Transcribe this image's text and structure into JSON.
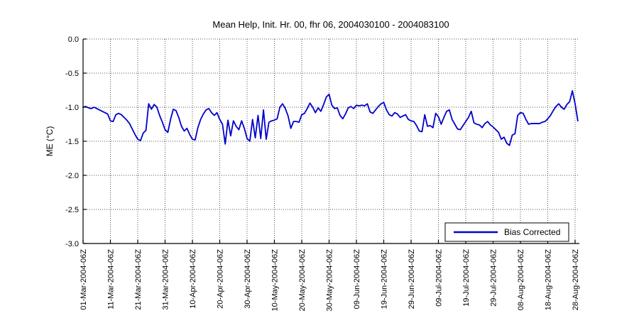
{
  "title": "Mean Help, Init. Hr. 00, fhr 06, 2004030100 - 2004083100",
  "colors": {
    "line": "#0000CC",
    "grid": "#555555",
    "axis": "#000000",
    "background": "#FFFFFF",
    "text": "#000000"
  },
  "chart_data": {
    "type": "line",
    "title": "Mean Help, Init. Hr. 00, fhr 06, 2004030100 - 2004083100",
    "xlabel": "",
    "ylabel": "ME (°C)",
    "ylim": [
      -3.0,
      0.0
    ],
    "ytick_labels": [
      "0.0",
      "-0.5",
      "-1.0",
      "-1.5",
      "-2.0",
      "-2.5",
      "-3.0"
    ],
    "ytick_values": [
      0.0,
      -0.5,
      -1.0,
      -1.5,
      -2.0,
      -2.5,
      -3.0
    ],
    "xtick_labels": [
      "01-Mar-2004-06Z",
      "11-Mar-2004-06Z",
      "21-Mar-2004-06Z",
      "31-Mar-2004-06Z",
      "10-Apr-2004-06Z",
      "20-Apr-2004-06Z",
      "30-Apr-2004-06Z",
      "10-May-2004-06Z",
      "20-May-2004-06Z",
      "30-May-2004-06Z",
      "09-Jun-2004-06Z",
      "19-Jun-2004-06Z",
      "29-Jun-2004-06Z",
      "09-Jul-2004-06Z",
      "19-Jul-2004-06Z",
      "29-Jul-2004-06Z",
      "08-Aug-2004-06Z",
      "18-Aug-2004-06Z",
      "28-Aug-2004-06Z"
    ],
    "xtick_spacing_days": 10,
    "x_total_days": 180,
    "grid": "dotted",
    "legend": {
      "position": "lower-right",
      "label": "Bias Corrected"
    },
    "series": [
      {
        "name": "Bias Corrected",
        "color": "#0000CC",
        "x_start_day": 0,
        "x_step_days": 1,
        "values": [
          -1.0,
          -0.99,
          -1.01,
          -1.02,
          -1.0,
          -1.02,
          -1.04,
          -1.06,
          -1.08,
          -1.1,
          -1.2,
          -1.21,
          -1.11,
          -1.09,
          -1.11,
          -1.15,
          -1.19,
          -1.24,
          -1.32,
          -1.4,
          -1.47,
          -1.49,
          -1.38,
          -1.34,
          -0.95,
          -1.03,
          -0.96,
          -1.0,
          -1.12,
          -1.22,
          -1.33,
          -1.37,
          -1.18,
          -1.03,
          -1.05,
          -1.15,
          -1.28,
          -1.35,
          -1.31,
          -1.4,
          -1.47,
          -1.48,
          -1.3,
          -1.18,
          -1.1,
          -1.04,
          -1.02,
          -1.08,
          -1.12,
          -1.08,
          -1.18,
          -1.25,
          -1.54,
          -1.19,
          -1.42,
          -1.2,
          -1.28,
          -1.33,
          -1.2,
          -1.31,
          -1.46,
          -1.5,
          -1.18,
          -1.45,
          -1.12,
          -1.46,
          -1.04,
          -1.47,
          -1.22,
          -1.2,
          -1.19,
          -1.17,
          -1.0,
          -0.95,
          -1.02,
          -1.13,
          -1.31,
          -1.21,
          -1.21,
          -1.22,
          -1.11,
          -1.09,
          -1.02,
          -0.94,
          -1.0,
          -1.08,
          -1.01,
          -1.06,
          -0.96,
          -0.85,
          -0.81,
          -0.97,
          -1.02,
          -1.01,
          -1.12,
          -1.17,
          -1.1,
          -1.01,
          -0.99,
          -1.02,
          -0.97,
          -0.98,
          -0.97,
          -0.98,
          -0.95,
          -1.07,
          -1.09,
          -1.04,
          -0.99,
          -0.95,
          -0.93,
          -1.04,
          -1.11,
          -1.13,
          -1.08,
          -1.1,
          -1.15,
          -1.13,
          -1.11,
          -1.18,
          -1.2,
          -1.21,
          -1.27,
          -1.35,
          -1.36,
          -1.11,
          -1.28,
          -1.27,
          -1.3,
          -1.09,
          -1.14,
          -1.25,
          -1.15,
          -1.06,
          -1.04,
          -1.18,
          -1.25,
          -1.32,
          -1.33,
          -1.27,
          -1.21,
          -1.15,
          -1.06,
          -1.23,
          -1.25,
          -1.26,
          -1.3,
          -1.24,
          -1.21,
          -1.26,
          -1.29,
          -1.33,
          -1.37,
          -1.47,
          -1.44,
          -1.53,
          -1.56,
          -1.41,
          -1.39,
          -1.12,
          -1.08,
          -1.09,
          -1.18,
          -1.25,
          -1.24,
          -1.24,
          -1.24,
          -1.24,
          -1.22,
          -1.21,
          -1.17,
          -1.12,
          -1.05,
          -0.99,
          -0.95,
          -1.0,
          -1.03,
          -0.96,
          -0.92,
          -0.76,
          -0.95,
          -1.2
        ]
      }
    ]
  }
}
